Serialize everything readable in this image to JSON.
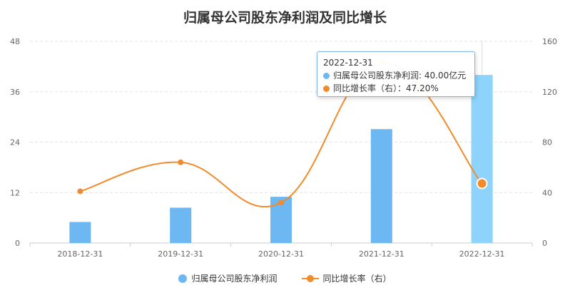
{
  "chart_data": {
    "type": "bar",
    "title": "归属母公司股东净利润及同比增长",
    "categories": [
      "2018-12-31",
      "2019-12-31",
      "2020-12-31",
      "2021-12-31",
      "2022-12-31"
    ],
    "series": [
      {
        "name": "归属母公司股东净利润",
        "type": "bar",
        "axis": "left",
        "color": "#6db8f2",
        "values": [
          5.0,
          8.4,
          11.0,
          27.1,
          40.0
        ]
      },
      {
        "name": "同比增长率（右）",
        "type": "line",
        "axis": "right",
        "color": "#f08c2c",
        "values": [
          41.0,
          64.0,
          32.0,
          143.0,
          47.2
        ]
      }
    ],
    "y_left": {
      "ticks": [
        "0",
        "12",
        "24",
        "36",
        "48"
      ],
      "range": [
        0,
        48
      ]
    },
    "y_right": {
      "ticks": [
        "0",
        "40",
        "80",
        "120",
        "160"
      ],
      "range": [
        0,
        160
      ]
    },
    "highlighted_index": 4,
    "highlight_color": "#8dd3fb",
    "grid": "horizontal-dashed",
    "legend_position": "bottom"
  },
  "tooltip": {
    "date": "2022-12-31",
    "line1": "归属母公司股东净利润: 40.00亿元",
    "line2": "同比增长率（右）：47.20%"
  },
  "legend": {
    "bar_label": "归属母公司股东净利润",
    "line_label": "同比增长率（右）"
  }
}
